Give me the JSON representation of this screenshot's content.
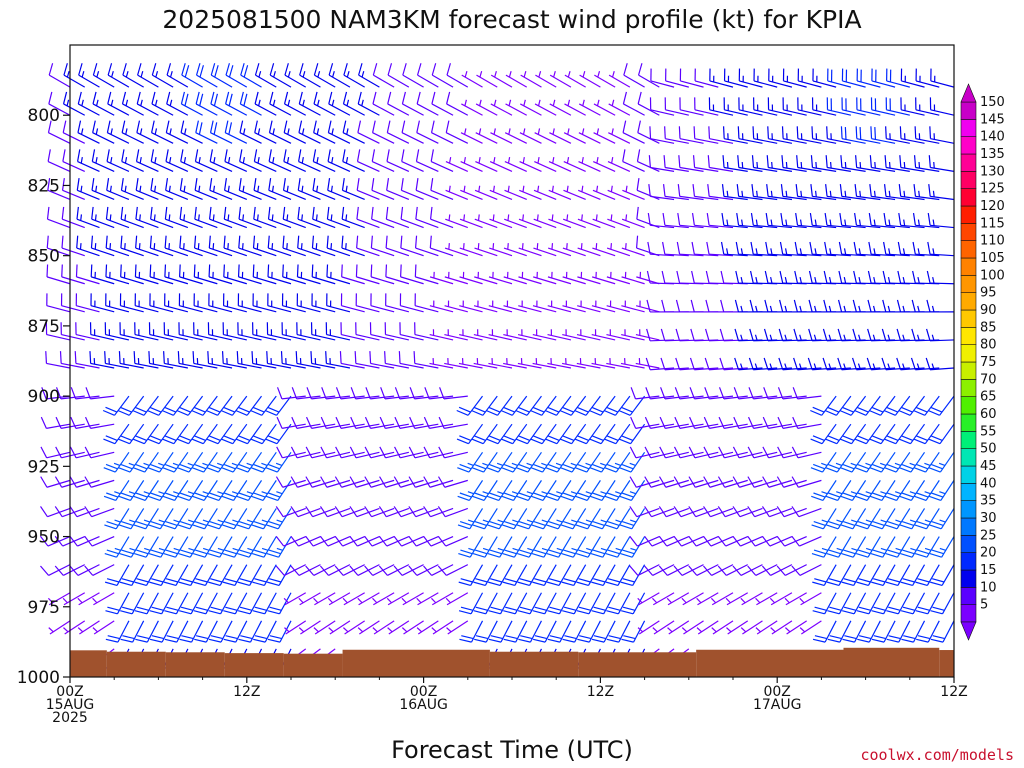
{
  "chart_data": {
    "type": "wind-barb-time-height",
    "title": "2025081500 NAM3KM forecast wind profile (kt) for KPIA",
    "xlabel": "Forecast Time (UTC)",
    "ylabel": "",
    "y_axis": {
      "unit": "hPa",
      "range": [
        1000,
        775
      ],
      "reversed": true,
      "ticks": [
        "800",
        "825",
        "850",
        "875",
        "900",
        "925",
        "950",
        "975",
        "1000"
      ]
    },
    "x_axis": {
      "range_hours": [
        0,
        60
      ],
      "ticks": [
        {
          "hour": 0,
          "lines": [
            "00Z",
            "15AUG",
            "2025"
          ]
        },
        {
          "hour": 12,
          "lines": [
            "12Z"
          ]
        },
        {
          "hour": 24,
          "lines": [
            "00Z",
            "16AUG"
          ]
        },
        {
          "hour": 36,
          "lines": [
            "12Z"
          ]
        },
        {
          "hour": 48,
          "lines": [
            "00Z",
            "17AUG"
          ]
        },
        {
          "hour": 60,
          "lines": [
            "12Z"
          ]
        }
      ]
    },
    "colorbar": {
      "unit": "kt",
      "labels": [
        "5",
        "10",
        "15",
        "20",
        "25",
        "30",
        "35",
        "40",
        "45",
        "50",
        "55",
        "60",
        "65",
        "70",
        "75",
        "80",
        "85",
        "90",
        "95",
        "100",
        "105",
        "110",
        "115",
        "120",
        "125",
        "130",
        "135",
        "140",
        "145",
        "150"
      ],
      "colors": [
        "#7b00ff",
        "#5a00ff",
        "#0000ee",
        "#0028ff",
        "#0050ff",
        "#0078ff",
        "#0096ff",
        "#00b4ff",
        "#00d2e6",
        "#00e6b4",
        "#00f078",
        "#28f028",
        "#50f000",
        "#8cf000",
        "#c8f000",
        "#f0f000",
        "#ffe600",
        "#ffc800",
        "#ffaa00",
        "#ff9600",
        "#ff8200",
        "#ff6400",
        "#ff4600",
        "#ff1e00",
        "#ff0032",
        "#ff0064",
        "#ff0096",
        "#ff00c8",
        "#f000f0",
        "#c800c8"
      ]
    },
    "surface_pressure_hPa": [
      {
        "from_h": 0,
        "to_h": 2.5,
        "p": 990.5
      },
      {
        "from_h": 2.5,
        "to_h": 6.5,
        "p": 991.0
      },
      {
        "from_h": 6.5,
        "to_h": 10.5,
        "p": 991.2
      },
      {
        "from_h": 10.5,
        "to_h": 14.5,
        "p": 991.5
      },
      {
        "from_h": 14.5,
        "to_h": 18.5,
        "p": 991.7
      },
      {
        "from_h": 18.5,
        "to_h": 22.5,
        "p": 990.3
      },
      {
        "from_h": 22.5,
        "to_h": 28.5,
        "p": 990.3
      },
      {
        "from_h": 28.5,
        "to_h": 34.5,
        "p": 991.0
      },
      {
        "from_h": 34.5,
        "to_h": 42.5,
        "p": 991.2
      },
      {
        "from_h": 42.5,
        "to_h": 52.5,
        "p": 990.3
      },
      {
        "from_h": 52.5,
        "to_h": 59.0,
        "p": 989.6
      },
      {
        "from_h": 59.0,
        "to_h": 60.0,
        "p": 990.4
      }
    ],
    "barbs": {
      "interval_hours": 1,
      "levels_hPa": [
        790,
        800,
        810,
        820,
        830,
        840,
        850,
        860,
        870,
        880,
        890,
        900,
        910,
        920,
        930,
        940,
        950,
        960,
        970,
        980,
        990
      ]
    }
  },
  "footer": {
    "credit": "coolwx.com/models"
  }
}
